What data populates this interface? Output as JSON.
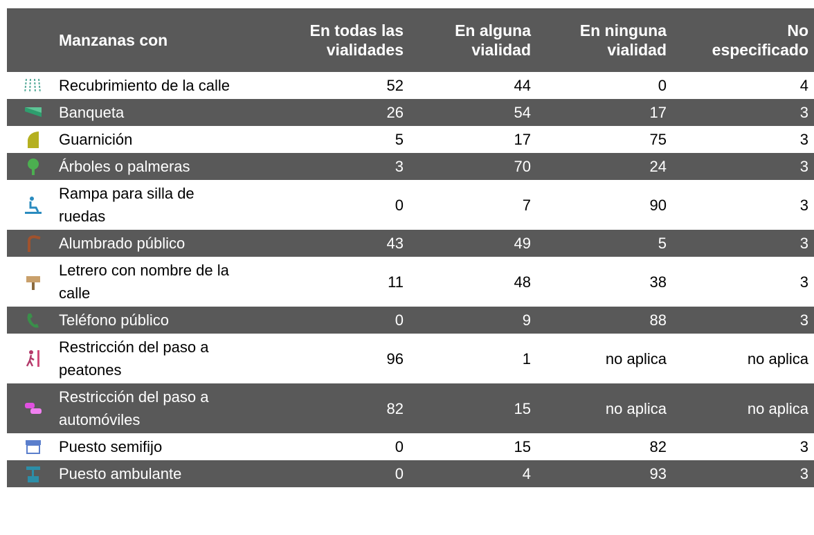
{
  "table": {
    "header": [
      "Manzanas con",
      "En todas las vialidades",
      "En alguna vialidad",
      "En ninguna vialidad",
      "No especificado"
    ],
    "rows": [
      [
        "Recubrimiento de la calle",
        "52",
        "44",
        "0",
        "4"
      ],
      [
        "Banqueta",
        "26",
        "54",
        "17",
        "3"
      ],
      [
        "Guarnición",
        "5",
        "17",
        "75",
        "3"
      ],
      [
        "Árboles o palmeras",
        "3",
        "70",
        "24",
        "3"
      ],
      [
        "Rampa para silla de ruedas",
        "0",
        "7",
        "90",
        "3"
      ],
      [
        "Alumbrado público",
        "43",
        "49",
        "5",
        "3"
      ],
      [
        "Letrero con nombre de la calle",
        "11",
        "48",
        "38",
        "3"
      ],
      [
        "Teléfono público",
        "0",
        "9",
        "88",
        "3"
      ],
      [
        "Restricción del paso a peatones",
        "96",
        "1",
        "no aplica",
        "no aplica"
      ],
      [
        "Restricción del paso a automóviles",
        "82",
        "15",
        "no aplica",
        "no aplica"
      ],
      [
        "Puesto semifijo",
        "0",
        "15",
        "82",
        "3"
      ],
      [
        "Puesto ambulante",
        "0",
        "4",
        "93",
        "3"
      ]
    ]
  }
}
